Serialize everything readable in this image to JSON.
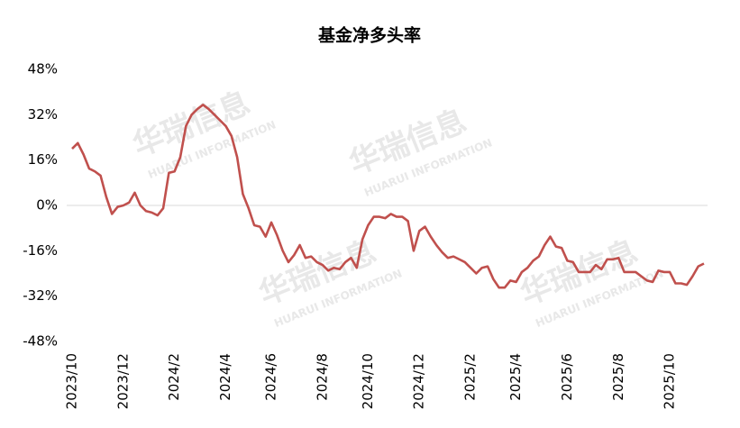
{
  "chart_data": {
    "type": "line",
    "title": "基金净多头率",
    "watermark": {
      "brand": "华瑞信息",
      "subtitle": "HUARUI INFORMATION"
    },
    "categories": [
      "2023/10",
      null,
      null,
      null,
      null,
      null,
      null,
      null,
      null,
      "2023/12",
      null,
      null,
      null,
      null,
      null,
      null,
      null,
      null,
      "2024/2",
      null,
      null,
      null,
      null,
      null,
      null,
      null,
      null,
      "2024/4",
      null,
      null,
      null,
      null,
      null,
      null,
      null,
      "2024/6",
      null,
      null,
      null,
      null,
      null,
      null,
      null,
      null,
      "2024/8",
      null,
      null,
      null,
      null,
      null,
      null,
      null,
      "2024/10",
      null,
      null,
      null,
      null,
      null,
      null,
      null,
      null,
      "2024/12",
      null,
      null,
      null,
      null,
      null,
      null,
      null,
      null,
      "2025/2",
      null,
      null,
      null,
      null,
      null,
      null,
      null,
      "2025/4",
      null,
      null,
      null,
      null,
      null,
      null,
      null,
      null,
      "2025/6",
      null,
      null,
      null,
      null,
      null,
      null,
      null,
      null,
      "2025/8",
      null,
      null,
      null,
      null,
      null,
      null,
      null,
      null,
      "2025/10",
      null,
      null,
      null,
      null,
      null,
      null
    ],
    "series": [
      {
        "name": "基金净多头率",
        "color": "#c0504d",
        "values": [
          20,
          22,
          18,
          13,
          12,
          10.5,
          3,
          -3,
          -0.5,
          0,
          1,
          4.5,
          0,
          -2,
          -2.5,
          -3.5,
          -1,
          11.5,
          12,
          17,
          28,
          32,
          34,
          35.5,
          34,
          32,
          30,
          28,
          24.5,
          17,
          4,
          -1,
          -7,
          -7.5,
          -11,
          -6,
          -10.5,
          -16,
          -20,
          -17.5,
          -14,
          -18.5,
          -18,
          -20,
          -21,
          -23,
          -22,
          -22.5,
          -20,
          -18.5,
          -22,
          -12,
          -7,
          -4,
          -4,
          -4.5,
          -3,
          -4,
          -4,
          -5.5,
          -16,
          -9,
          -7.5,
          -11,
          -14,
          -16.5,
          -18.5,
          -18,
          -19,
          -20,
          -22,
          -24,
          -22,
          -21.5,
          -26,
          -29,
          -29,
          -26.5,
          -27,
          -23.5,
          -22,
          -19.5,
          -18,
          -14,
          -11,
          -14.5,
          -15,
          -19.5,
          -20,
          -23.5,
          -23.5,
          -23.5,
          -21,
          -22.5,
          -19,
          -19,
          -18.5,
          -23.5,
          -23.5,
          -23.5,
          -25,
          -26.5,
          -27,
          -23,
          -23.5,
          -23.5,
          -27.5,
          -27.5,
          -28,
          -25,
          -21.5,
          -20.5
        ]
      }
    ],
    "ylim": [
      -48,
      48
    ],
    "yticks": [
      {
        "value": -48,
        "label": "-48%"
      },
      {
        "value": -32,
        "label": "-32%"
      },
      {
        "value": -16,
        "label": "-16%"
      },
      {
        "value": 0,
        "label": "0%"
      },
      {
        "value": 16,
        "label": "16%"
      },
      {
        "value": 32,
        "label": "32%"
      },
      {
        "value": 48,
        "label": "48%"
      }
    ]
  }
}
